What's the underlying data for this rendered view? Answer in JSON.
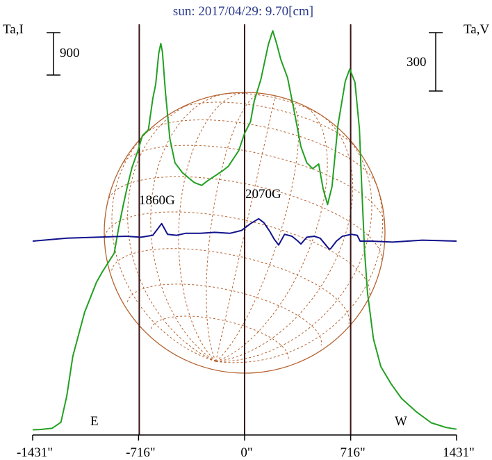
{
  "chart_data": {
    "type": "line",
    "title": "sun: 2017/04/29: 9.70[cm]",
    "left_axis_label": "Ta,I",
    "right_axis_label": "Ta,V",
    "left_scale_bar": "900",
    "right_scale_bar": "300",
    "x_ticks": [
      "-1431\"",
      "-716\"",
      "0\"",
      "716\"",
      "1431\""
    ],
    "x_tick_values": [
      -1431,
      -716,
      0,
      716,
      1431
    ],
    "xlim": [
      -1431,
      1431
    ],
    "limb_labels": {
      "east": "E",
      "west": "W"
    },
    "limb_positions": [
      -716,
      716
    ],
    "annotations": [
      {
        "text": "1860G",
        "x": -430
      },
      {
        "text": "2070G",
        "x": 150
      }
    ],
    "colors": {
      "title": "#2a3a8c",
      "stokes_I": "#22a022",
      "stokes_V": "#12128c",
      "solar_grid": "#b5622e",
      "vertical_lines": "#3a1414"
    },
    "series": [
      {
        "key": "stokes_I",
        "points": [
          [
            -1431,
            30
          ],
          [
            -1380,
            35
          ],
          [
            -1300,
            55
          ],
          [
            -1240,
            160
          ],
          [
            -1200,
            620
          ],
          [
            -1160,
            1300
          ],
          [
            -1080,
            2060
          ],
          [
            -1000,
            2580
          ],
          [
            -960,
            2760
          ],
          [
            -880,
            3080
          ],
          [
            -850,
            3520
          ],
          [
            -820,
            3900
          ],
          [
            -790,
            4250
          ],
          [
            -760,
            4560
          ],
          [
            -720,
            4850
          ],
          [
            -690,
            5110
          ],
          [
            -650,
            5210
          ],
          [
            -620,
            5750
          ],
          [
            -600,
            6000
          ],
          [
            -580,
            6530
          ],
          [
            -566,
            6700
          ],
          [
            -555,
            6560
          ],
          [
            -535,
            5870
          ],
          [
            -505,
            5060
          ],
          [
            -470,
            4640
          ],
          [
            -420,
            4470
          ],
          [
            -340,
            4300
          ],
          [
            -290,
            4250
          ],
          [
            -250,
            4330
          ],
          [
            -150,
            4500
          ],
          [
            -110,
            4580
          ],
          [
            -40,
            4850
          ],
          [
            0,
            5150
          ],
          [
            40,
            5350
          ],
          [
            65,
            5710
          ],
          [
            110,
            6080
          ],
          [
            160,
            6680
          ],
          [
            190,
            6920
          ],
          [
            215,
            6710
          ],
          [
            245,
            6420
          ],
          [
            290,
            6110
          ],
          [
            335,
            5530
          ],
          [
            380,
            4920
          ],
          [
            420,
            4640
          ],
          [
            460,
            4540
          ],
          [
            500,
            4620
          ],
          [
            530,
            4190
          ],
          [
            560,
            3920
          ],
          [
            590,
            4230
          ],
          [
            630,
            5290
          ],
          [
            680,
            6050
          ],
          [
            710,
            6260
          ],
          [
            745,
            6030
          ],
          [
            775,
            5230
          ],
          [
            790,
            4270
          ],
          [
            810,
            3120
          ],
          [
            830,
            2390
          ],
          [
            870,
            1600
          ],
          [
            920,
            1120
          ],
          [
            990,
            820
          ],
          [
            1060,
            570
          ],
          [
            1160,
            340
          ],
          [
            1260,
            150
          ],
          [
            1360,
            70
          ],
          [
            1431,
            40
          ]
        ]
      },
      {
        "key": "stokes_V",
        "points": [
          [
            -1431,
            0
          ],
          [
            -1200,
            15
          ],
          [
            -1000,
            20
          ],
          [
            -800,
            25
          ],
          [
            -700,
            20
          ],
          [
            -620,
            30
          ],
          [
            -560,
            90
          ],
          [
            -520,
            35
          ],
          [
            -460,
            30
          ],
          [
            -400,
            40
          ],
          [
            -300,
            40
          ],
          [
            -200,
            45
          ],
          [
            -100,
            40
          ],
          [
            -20,
            55
          ],
          [
            40,
            90
          ],
          [
            95,
            115
          ],
          [
            130,
            95
          ],
          [
            170,
            50
          ],
          [
            200,
            10
          ],
          [
            230,
            -20
          ],
          [
            270,
            35
          ],
          [
            320,
            25
          ],
          [
            360,
            0
          ],
          [
            380,
            -15
          ],
          [
            420,
            20
          ],
          [
            470,
            25
          ],
          [
            510,
            15
          ],
          [
            570,
            -40
          ],
          [
            580,
            -40
          ],
          [
            620,
            0
          ],
          [
            660,
            25
          ],
          [
            720,
            35
          ],
          [
            760,
            30
          ],
          [
            780,
            0
          ],
          [
            850,
            0
          ],
          [
            1000,
            -5
          ],
          [
            1200,
            5
          ],
          [
            1431,
            0
          ]
        ]
      }
    ]
  }
}
